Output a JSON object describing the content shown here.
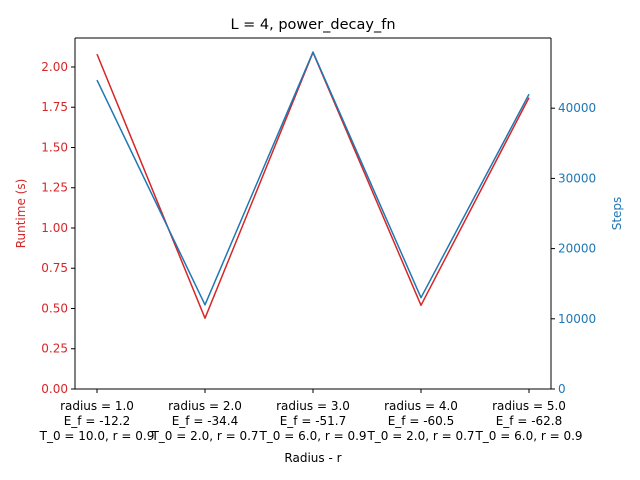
{
  "chart_data": {
    "type": "line",
    "title": "L = 4, power_decay_fn",
    "xlabel": "Radius - r",
    "categories": [
      [
        "radius = 1.0",
        "E_f = -12.2",
        "T_0 = 10.0, r = 0.9"
      ],
      [
        "radius = 2.0",
        "E_f = -34.4",
        "T_0 = 2.0, r = 0.7"
      ],
      [
        "radius = 3.0",
        "E_f = -51.7",
        "T_0 = 6.0, r = 0.9"
      ],
      [
        "radius = 4.0",
        "E_f = -60.5",
        "T_0 = 2.0, r = 0.7"
      ],
      [
        "radius = 5.0",
        "E_f = -62.8",
        "T_0 = 6.0, r = 0.9"
      ]
    ],
    "left_axis": {
      "label": "Runtime (s)",
      "color": "#d62728",
      "ylim": [
        0,
        2.18
      ],
      "ticks": [
        "0.00",
        "0.25",
        "0.50",
        "0.75",
        "1.00",
        "1.25",
        "1.50",
        "1.75",
        "2.00"
      ]
    },
    "right_axis": {
      "label": "Steps",
      "color": "#1f77b4",
      "ylim": [
        0,
        50000
      ],
      "ticks": [
        "0",
        "10000",
        "20000",
        "30000",
        "40000"
      ]
    },
    "series": [
      {
        "axis": "left",
        "color": "#d62728",
        "values": [
          2.08,
          0.44,
          2.09,
          0.52,
          1.81
        ]
      },
      {
        "axis": "right",
        "color": "#1f77b4",
        "values": [
          44000,
          12000,
          48000,
          13000,
          42000
        ]
      }
    ],
    "grid": false,
    "legend": "none"
  }
}
